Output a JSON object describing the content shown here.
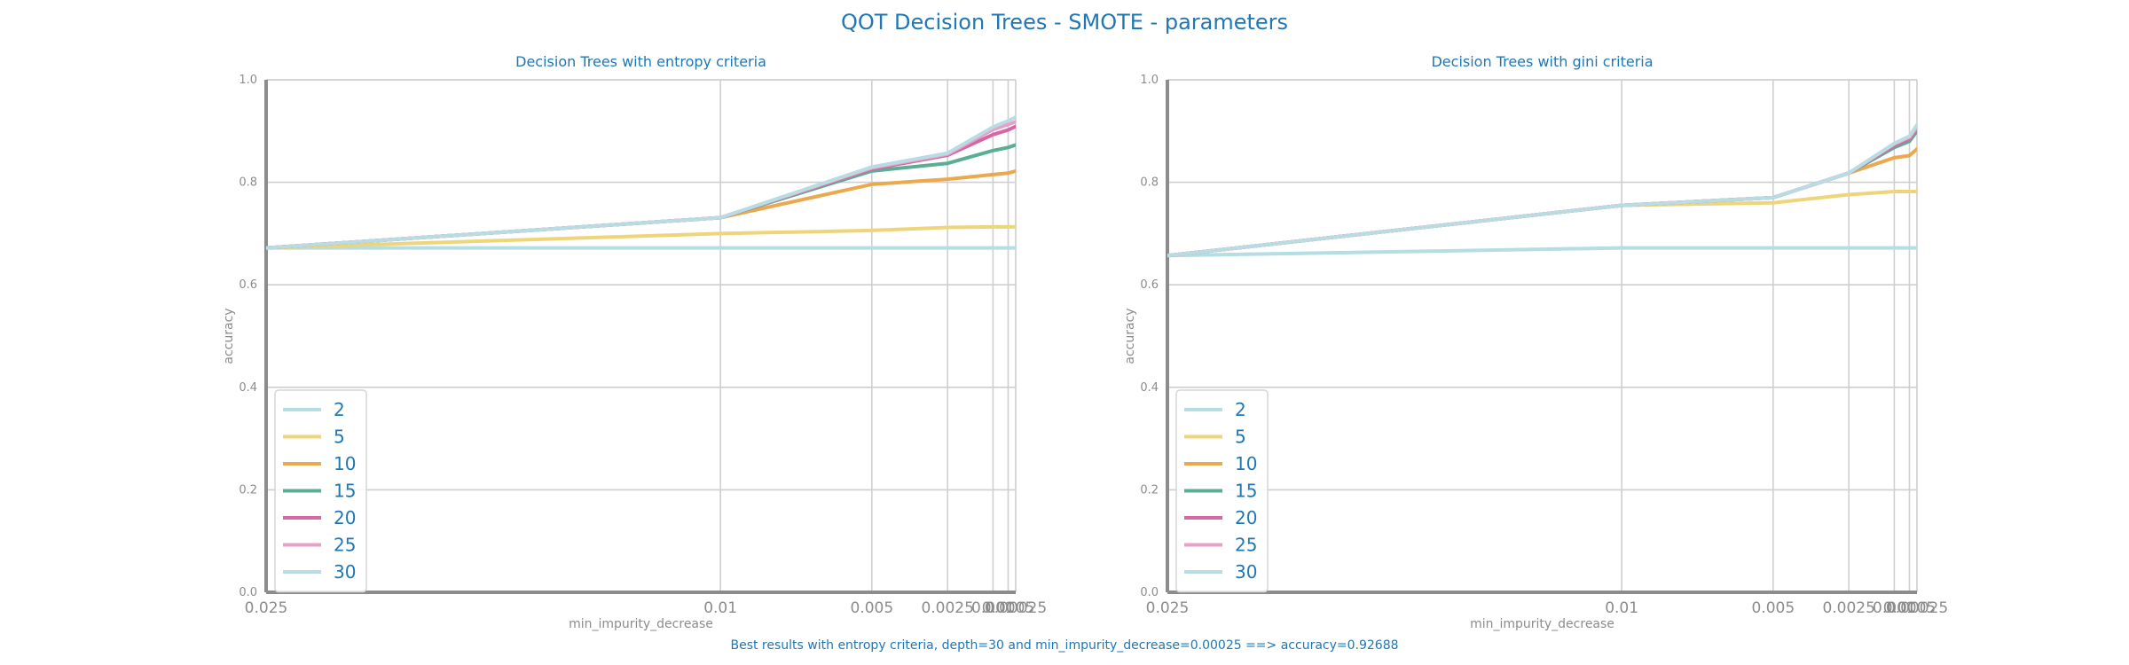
{
  "figure": {
    "title": "QOT Decision Trees - SMOTE - parameters",
    "caption": "Best results with entropy criteria, depth=30 and min_impurity_decrease=0.00025 ==> accuracy=0.92688"
  },
  "chart_data": [
    {
      "type": "line",
      "title": "Decision Trees with entropy criteria",
      "xlabel": "min_impurity_decrease",
      "ylabel": "accuracy",
      "x": [
        0.025,
        0.01,
        0.005,
        0.0025,
        0.001,
        0.0005,
        0.00025
      ],
      "x_tick_labels": [
        "0.025",
        "0.01",
        "0.005",
        "0.0025",
        "0.001",
        "0.0005",
        "0.00025"
      ],
      "x_scale": "reversed",
      "ylim": [
        0.0,
        1.0
      ],
      "y_ticks": [
        "0.0",
        "0.2",
        "0.4",
        "0.6",
        "0.8",
        "1.0"
      ],
      "grid": true,
      "legend_position": "lower-left",
      "series": [
        {
          "name": "2",
          "color": "#b4dde4",
          "values": [
            0.672,
            0.672,
            0.672,
            0.672,
            0.672,
            0.672,
            0.672
          ]
        },
        {
          "name": "5",
          "color": "#efd57a",
          "values": [
            0.672,
            0.7,
            0.706,
            0.712,
            0.713,
            0.713,
            0.713
          ]
        },
        {
          "name": "10",
          "color": "#eba94d",
          "values": [
            0.672,
            0.731,
            0.796,
            0.806,
            0.815,
            0.818,
            0.822
          ]
        },
        {
          "name": "15",
          "color": "#5aae94",
          "values": [
            0.672,
            0.731,
            0.822,
            0.837,
            0.862,
            0.868,
            0.873
          ]
        },
        {
          "name": "20",
          "color": "#d667a4",
          "values": [
            0.672,
            0.731,
            0.826,
            0.853,
            0.893,
            0.902,
            0.909
          ]
        },
        {
          "name": "25",
          "color": "#e7a1c8",
          "values": [
            0.672,
            0.731,
            0.828,
            0.855,
            0.903,
            0.913,
            0.918
          ]
        },
        {
          "name": "30",
          "color": "#b9dce3",
          "values": [
            0.672,
            0.731,
            0.83,
            0.857,
            0.908,
            0.92,
            0.927
          ]
        }
      ]
    },
    {
      "type": "line",
      "title": "Decision Trees with gini criteria",
      "xlabel": "min_impurity_decrease",
      "ylabel": "accuracy",
      "x": [
        0.025,
        0.01,
        0.005,
        0.0025,
        0.001,
        0.0005,
        0.00025
      ],
      "x_tick_labels": [
        "0.025",
        "0.01",
        "0.005",
        "0.0025",
        "0.001",
        "0.0005",
        "0.00025"
      ],
      "x_scale": "reversed",
      "ylim": [
        0.0,
        1.0
      ],
      "y_ticks": [
        "0.0",
        "0.2",
        "0.4",
        "0.6",
        "0.8",
        "1.0"
      ],
      "grid": true,
      "legend_position": "lower-left",
      "series": [
        {
          "name": "2",
          "color": "#b4dde4",
          "values": [
            0.657,
            0.672,
            0.672,
            0.672,
            0.672,
            0.672,
            0.672
          ]
        },
        {
          "name": "5",
          "color": "#efd57a",
          "values": [
            0.657,
            0.755,
            0.76,
            0.776,
            0.782,
            0.782,
            0.782
          ]
        },
        {
          "name": "10",
          "color": "#eba94d",
          "values": [
            0.657,
            0.755,
            0.77,
            0.818,
            0.848,
            0.852,
            0.865
          ]
        },
        {
          "name": "15",
          "color": "#5aae94",
          "values": [
            0.657,
            0.755,
            0.77,
            0.818,
            0.868,
            0.88,
            0.9
          ]
        },
        {
          "name": "20",
          "color": "#d667a4",
          "values": [
            0.657,
            0.755,
            0.77,
            0.818,
            0.872,
            0.885,
            0.905
          ]
        },
        {
          "name": "25",
          "color": "#e7a1c8",
          "values": [
            0.657,
            0.755,
            0.77,
            0.818,
            0.875,
            0.888,
            0.908
          ]
        },
        {
          "name": "30",
          "color": "#b9dce3",
          "values": [
            0.657,
            0.755,
            0.77,
            0.818,
            0.876,
            0.89,
            0.912
          ]
        }
      ]
    }
  ]
}
